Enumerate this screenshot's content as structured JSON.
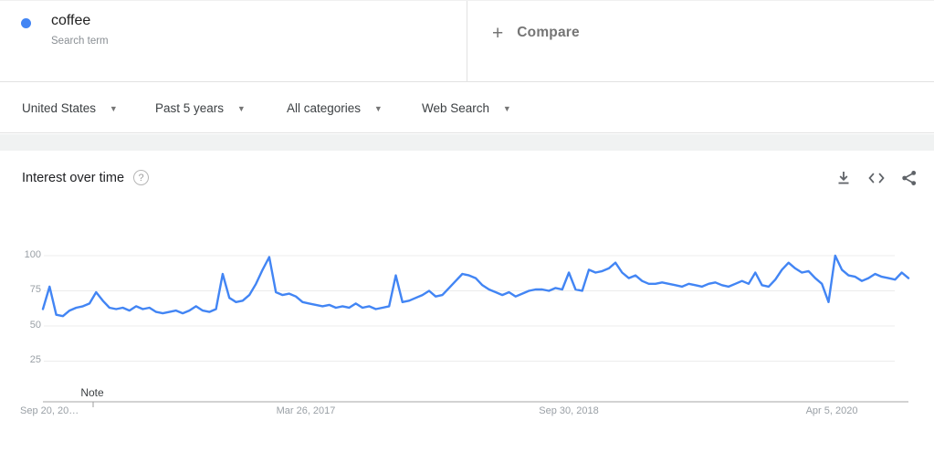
{
  "colors": {
    "accent": "#4285f4",
    "grid": "#ececec",
    "axis": "#c4c4c4",
    "tick_label": "#9aa0a6"
  },
  "term_card": {
    "term": "coffee",
    "type_label": "Search term"
  },
  "compare_card": {
    "plus_icon": "+",
    "label": "Compare"
  },
  "filters": [
    {
      "label": "United States"
    },
    {
      "label": "Past 5 years"
    },
    {
      "label": "All categories"
    },
    {
      "label": "Web Search"
    }
  ],
  "chart_header": {
    "title": "Interest over time",
    "help_icon": "?",
    "actions": [
      {
        "icon": "download-icon"
      },
      {
        "icon": "embed-icon"
      },
      {
        "icon": "share-icon"
      }
    ]
  },
  "chart_data": {
    "type": "line",
    "title": "Interest over time",
    "ylim": [
      0,
      100
    ],
    "y_ticks": [
      "100",
      "75",
      "50",
      "25"
    ],
    "x_tick_labels": [
      "Sep 20, 20…",
      "Mar 26, 2017",
      "Sep 30, 2018",
      "Apr 5, 2020"
    ],
    "annotation": {
      "label": "Note"
    },
    "grid": true,
    "legend": "none",
    "series": [
      {
        "name": "coffee",
        "color": "#4285f4",
        "values": [
          62,
          78,
          58,
          57,
          61,
          63,
          64,
          66,
          74,
          68,
          63,
          62,
          63,
          61,
          64,
          62,
          63,
          60,
          59,
          60,
          61,
          59,
          61,
          64,
          61,
          60,
          62,
          87,
          70,
          67,
          68,
          72,
          80,
          90,
          99,
          74,
          72,
          73,
          71,
          67,
          66,
          65,
          64,
          65,
          63,
          64,
          63,
          66,
          63,
          64,
          62,
          63,
          64,
          86,
          67,
          68,
          70,
          72,
          75,
          71,
          72,
          77,
          82,
          87,
          86,
          84,
          79,
          76,
          74,
          72,
          74,
          71,
          73,
          75,
          76,
          76,
          75,
          77,
          76,
          88,
          76,
          75,
          90,
          88,
          89,
          91,
          95,
          88,
          84,
          86,
          82,
          80,
          80,
          81,
          80,
          79,
          78,
          80,
          79,
          78,
          80,
          81,
          79,
          78,
          80,
          82,
          80,
          88,
          79,
          78,
          83,
          90,
          95,
          91,
          88,
          89,
          84,
          80,
          67,
          100,
          90,
          86,
          85,
          82,
          84,
          87,
          85,
          84,
          83,
          88,
          84
        ]
      }
    ]
  }
}
